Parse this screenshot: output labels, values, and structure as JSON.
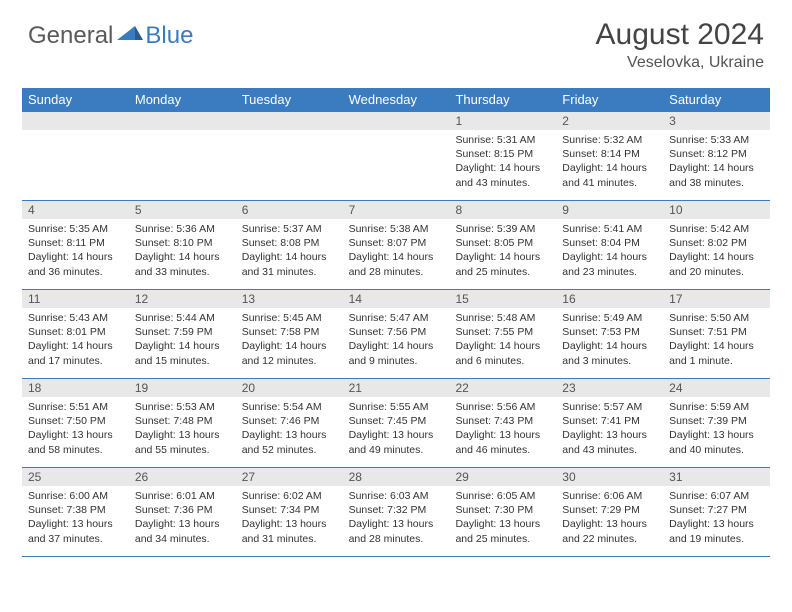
{
  "logo": {
    "general": "General",
    "blue": "Blue"
  },
  "title": "August 2024",
  "location": "Veselovka, Ukraine",
  "colors": {
    "header_bg": "#3b7bbf",
    "header_text": "#ffffff",
    "date_bg": "#e8e8e8",
    "border": "#3b7bbf",
    "text": "#333333"
  },
  "day_names": [
    "Sunday",
    "Monday",
    "Tuesday",
    "Wednesday",
    "Thursday",
    "Friday",
    "Saturday"
  ],
  "weeks": [
    [
      null,
      null,
      null,
      null,
      {
        "d": "1",
        "sr": "5:31 AM",
        "ss": "8:15 PM",
        "dl": "14 hours and 43 minutes."
      },
      {
        "d": "2",
        "sr": "5:32 AM",
        "ss": "8:14 PM",
        "dl": "14 hours and 41 minutes."
      },
      {
        "d": "3",
        "sr": "5:33 AM",
        "ss": "8:12 PM",
        "dl": "14 hours and 38 minutes."
      }
    ],
    [
      {
        "d": "4",
        "sr": "5:35 AM",
        "ss": "8:11 PM",
        "dl": "14 hours and 36 minutes."
      },
      {
        "d": "5",
        "sr": "5:36 AM",
        "ss": "8:10 PM",
        "dl": "14 hours and 33 minutes."
      },
      {
        "d": "6",
        "sr": "5:37 AM",
        "ss": "8:08 PM",
        "dl": "14 hours and 31 minutes."
      },
      {
        "d": "7",
        "sr": "5:38 AM",
        "ss": "8:07 PM",
        "dl": "14 hours and 28 minutes."
      },
      {
        "d": "8",
        "sr": "5:39 AM",
        "ss": "8:05 PM",
        "dl": "14 hours and 25 minutes."
      },
      {
        "d": "9",
        "sr": "5:41 AM",
        "ss": "8:04 PM",
        "dl": "14 hours and 23 minutes."
      },
      {
        "d": "10",
        "sr": "5:42 AM",
        "ss": "8:02 PM",
        "dl": "14 hours and 20 minutes."
      }
    ],
    [
      {
        "d": "11",
        "sr": "5:43 AM",
        "ss": "8:01 PM",
        "dl": "14 hours and 17 minutes."
      },
      {
        "d": "12",
        "sr": "5:44 AM",
        "ss": "7:59 PM",
        "dl": "14 hours and 15 minutes."
      },
      {
        "d": "13",
        "sr": "5:45 AM",
        "ss": "7:58 PM",
        "dl": "14 hours and 12 minutes."
      },
      {
        "d": "14",
        "sr": "5:47 AM",
        "ss": "7:56 PM",
        "dl": "14 hours and 9 minutes."
      },
      {
        "d": "15",
        "sr": "5:48 AM",
        "ss": "7:55 PM",
        "dl": "14 hours and 6 minutes."
      },
      {
        "d": "16",
        "sr": "5:49 AM",
        "ss": "7:53 PM",
        "dl": "14 hours and 3 minutes."
      },
      {
        "d": "17",
        "sr": "5:50 AM",
        "ss": "7:51 PM",
        "dl": "14 hours and 1 minute."
      }
    ],
    [
      {
        "d": "18",
        "sr": "5:51 AM",
        "ss": "7:50 PM",
        "dl": "13 hours and 58 minutes."
      },
      {
        "d": "19",
        "sr": "5:53 AM",
        "ss": "7:48 PM",
        "dl": "13 hours and 55 minutes."
      },
      {
        "d": "20",
        "sr": "5:54 AM",
        "ss": "7:46 PM",
        "dl": "13 hours and 52 minutes."
      },
      {
        "d": "21",
        "sr": "5:55 AM",
        "ss": "7:45 PM",
        "dl": "13 hours and 49 minutes."
      },
      {
        "d": "22",
        "sr": "5:56 AM",
        "ss": "7:43 PM",
        "dl": "13 hours and 46 minutes."
      },
      {
        "d": "23",
        "sr": "5:57 AM",
        "ss": "7:41 PM",
        "dl": "13 hours and 43 minutes."
      },
      {
        "d": "24",
        "sr": "5:59 AM",
        "ss": "7:39 PM",
        "dl": "13 hours and 40 minutes."
      }
    ],
    [
      {
        "d": "25",
        "sr": "6:00 AM",
        "ss": "7:38 PM",
        "dl": "13 hours and 37 minutes."
      },
      {
        "d": "26",
        "sr": "6:01 AM",
        "ss": "7:36 PM",
        "dl": "13 hours and 34 minutes."
      },
      {
        "d": "27",
        "sr": "6:02 AM",
        "ss": "7:34 PM",
        "dl": "13 hours and 31 minutes."
      },
      {
        "d": "28",
        "sr": "6:03 AM",
        "ss": "7:32 PM",
        "dl": "13 hours and 28 minutes."
      },
      {
        "d": "29",
        "sr": "6:05 AM",
        "ss": "7:30 PM",
        "dl": "13 hours and 25 minutes."
      },
      {
        "d": "30",
        "sr": "6:06 AM",
        "ss": "7:29 PM",
        "dl": "13 hours and 22 minutes."
      },
      {
        "d": "31",
        "sr": "6:07 AM",
        "ss": "7:27 PM",
        "dl": "13 hours and 19 minutes."
      }
    ]
  ],
  "labels": {
    "sunrise": "Sunrise:",
    "sunset": "Sunset:",
    "daylight": "Daylight:"
  }
}
